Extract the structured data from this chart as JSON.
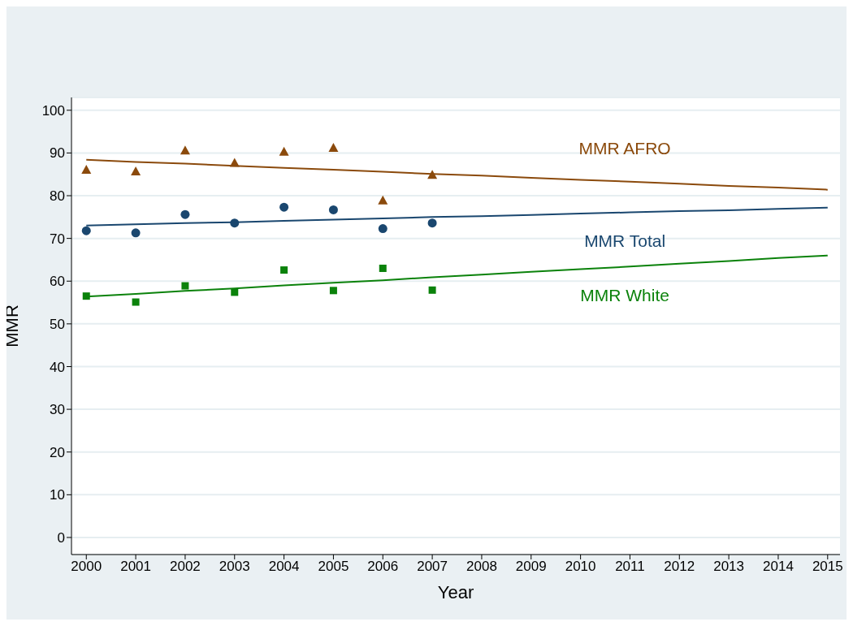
{
  "chart_data": {
    "type": "scatter",
    "xlabel": "Year",
    "ylabel": "MMR",
    "xlim": [
      1999.7,
      2015.25
    ],
    "xticks": [
      2000,
      2001,
      2002,
      2003,
      2004,
      2005,
      2006,
      2007,
      2008,
      2009,
      2010,
      2011,
      2012,
      2013,
      2014,
      2015
    ],
    "ylim": [
      -4,
      103
    ],
    "yticks": [
      0,
      10,
      20,
      30,
      40,
      50,
      60,
      70,
      80,
      90,
      100
    ],
    "grid": "y",
    "x": [
      2000,
      2001,
      2002,
      2003,
      2004,
      2005,
      2006,
      2007,
      2008,
      2009,
      2010,
      2011,
      2012,
      2013,
      2014,
      2015
    ],
    "series": [
      {
        "type": "scatter",
        "name": "MMR AFRO",
        "color": "#8b4a0c",
        "marker": "triangle",
        "values": [
          86.1,
          85.7,
          90.6,
          87.7,
          90.3,
          91.2,
          78.9,
          84.9,
          null,
          null,
          null,
          null,
          null,
          null,
          null,
          null
        ]
      },
      {
        "type": "scatter",
        "name": "MMR Total",
        "color": "#1a476f",
        "marker": "circle",
        "values": [
          71.8,
          71.3,
          75.6,
          73.6,
          77.3,
          76.7,
          72.3,
          73.6,
          null,
          null,
          null,
          null,
          null,
          null,
          null,
          null
        ]
      },
      {
        "type": "scatter",
        "name": "MMR White",
        "color": "#0b820b",
        "marker": "square",
        "values": [
          56.5,
          55.1,
          58.9,
          57.4,
          62.6,
          57.8,
          63.0,
          57.9,
          null,
          null,
          null,
          null,
          null,
          null,
          null,
          null
        ]
      },
      {
        "type": "line",
        "color": "#8b4a0c",
        "marker": "none",
        "values": [
          88.4,
          87.9,
          87.5,
          87.0,
          86.5,
          86.1,
          85.6,
          85.1,
          84.7,
          84.2,
          83.7,
          83.3,
          82.8,
          82.3,
          81.9,
          81.4
        ]
      },
      {
        "type": "line",
        "color": "#1a476f",
        "marker": "none",
        "values": [
          73.0,
          73.3,
          73.6,
          73.8,
          74.1,
          74.4,
          74.7,
          75.0,
          75.2,
          75.5,
          75.8,
          76.1,
          76.4,
          76.6,
          76.9,
          77.2
        ]
      },
      {
        "type": "line",
        "color": "#0b820b",
        "marker": "none",
        "values": [
          56.4,
          57.0,
          57.7,
          58.3,
          59.0,
          59.6,
          60.2,
          60.9,
          61.5,
          62.2,
          62.8,
          63.4,
          64.1,
          64.7,
          65.4,
          66.0
        ]
      }
    ]
  }
}
